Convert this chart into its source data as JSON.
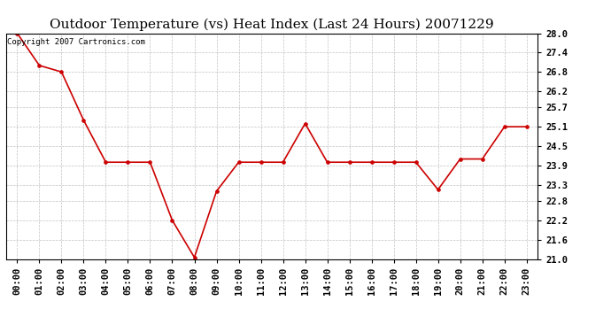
{
  "title": "Outdoor Temperature (vs) Heat Index (Last 24 Hours) 20071229",
  "copyright_text": "Copyright 2007 Cartronics.com",
  "x_labels": [
    "00:00",
    "01:00",
    "02:00",
    "03:00",
    "04:00",
    "05:00",
    "06:00",
    "07:00",
    "08:00",
    "09:00",
    "10:00",
    "11:00",
    "12:00",
    "13:00",
    "14:00",
    "15:00",
    "16:00",
    "17:00",
    "18:00",
    "19:00",
    "20:00",
    "21:00",
    "22:00",
    "23:00"
  ],
  "y_values": [
    28.0,
    27.0,
    26.8,
    25.3,
    24.0,
    24.0,
    24.0,
    22.2,
    21.05,
    23.1,
    24.0,
    24.0,
    24.0,
    25.2,
    24.0,
    24.0,
    24.0,
    24.0,
    24.0,
    23.15,
    24.1,
    24.1,
    25.1,
    25.1
  ],
  "ylim_min": 21.0,
  "ylim_max": 28.0,
  "yticks": [
    21.0,
    21.6,
    22.2,
    22.8,
    23.3,
    23.9,
    24.5,
    25.1,
    25.7,
    26.2,
    26.8,
    27.4,
    28.0
  ],
  "line_color": "#cc0000",
  "marker_color": "#cc0000",
  "bg_color": "#ffffff",
  "grid_color": "#bbbbbb",
  "title_fontsize": 11,
  "tick_fontsize": 7.5,
  "copyright_fontsize": 6.5
}
